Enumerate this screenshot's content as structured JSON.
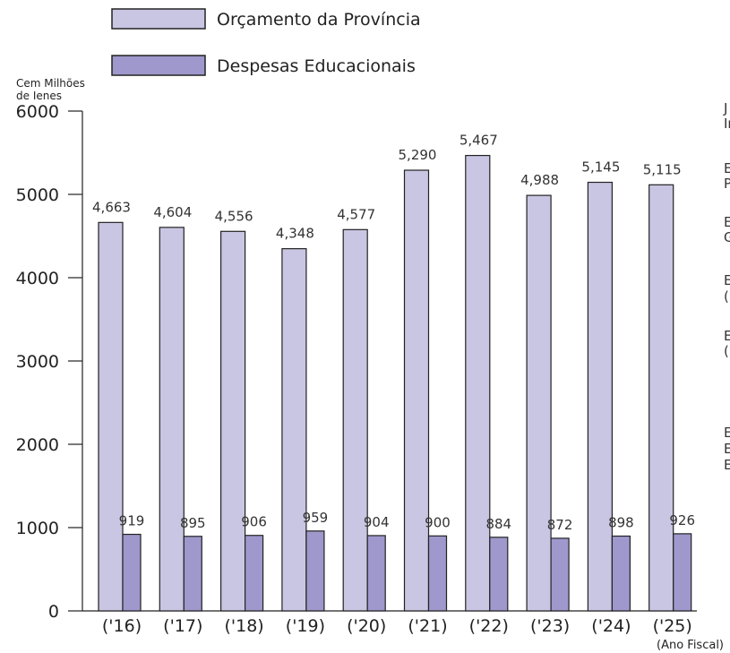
{
  "chart_data": {
    "type": "bar",
    "categories": [
      "('16)",
      "('17)",
      "('18)",
      "('19)",
      "('20)",
      "('21)",
      "('22)",
      "('23)",
      "('24)",
      "('25)"
    ],
    "series": [
      {
        "name": "Orçamento da Província",
        "values": [
          4663,
          4604,
          4556,
          4348,
          4577,
          5290,
          5467,
          4988,
          5145,
          5115
        ],
        "labels": [
          "4,663",
          "4,604",
          "4,556",
          "4,348",
          "4,577",
          "5,290",
          "5,467",
          "4,988",
          "5,145",
          "5,115"
        ],
        "color": "#c9c6e3"
      },
      {
        "name": "Despesas Educacionais",
        "values": [
          919,
          895,
          906,
          959,
          904,
          900,
          884,
          872,
          898,
          926
        ],
        "labels": [
          "919",
          "895",
          "906",
          "959",
          "904",
          "900",
          "884",
          "872",
          "898",
          "926"
        ],
        "color": "#9e98cc"
      }
    ],
    "ylabel": [
      "Cem Milhões",
      "de Ienes"
    ],
    "xlabel": "(Ano Fiscal)",
    "ylim": [
      0,
      6000
    ],
    "yticks": [
      "0",
      "1000",
      "2000",
      "3000",
      "4000",
      "5000",
      "6000"
    ],
    "legend_position": "top",
    "clipped_side_text": [
      "J",
      "In",
      "E",
      "P",
      "E",
      "G",
      "E",
      "(F",
      "E",
      "(l",
      "E",
      "E",
      "E"
    ]
  }
}
